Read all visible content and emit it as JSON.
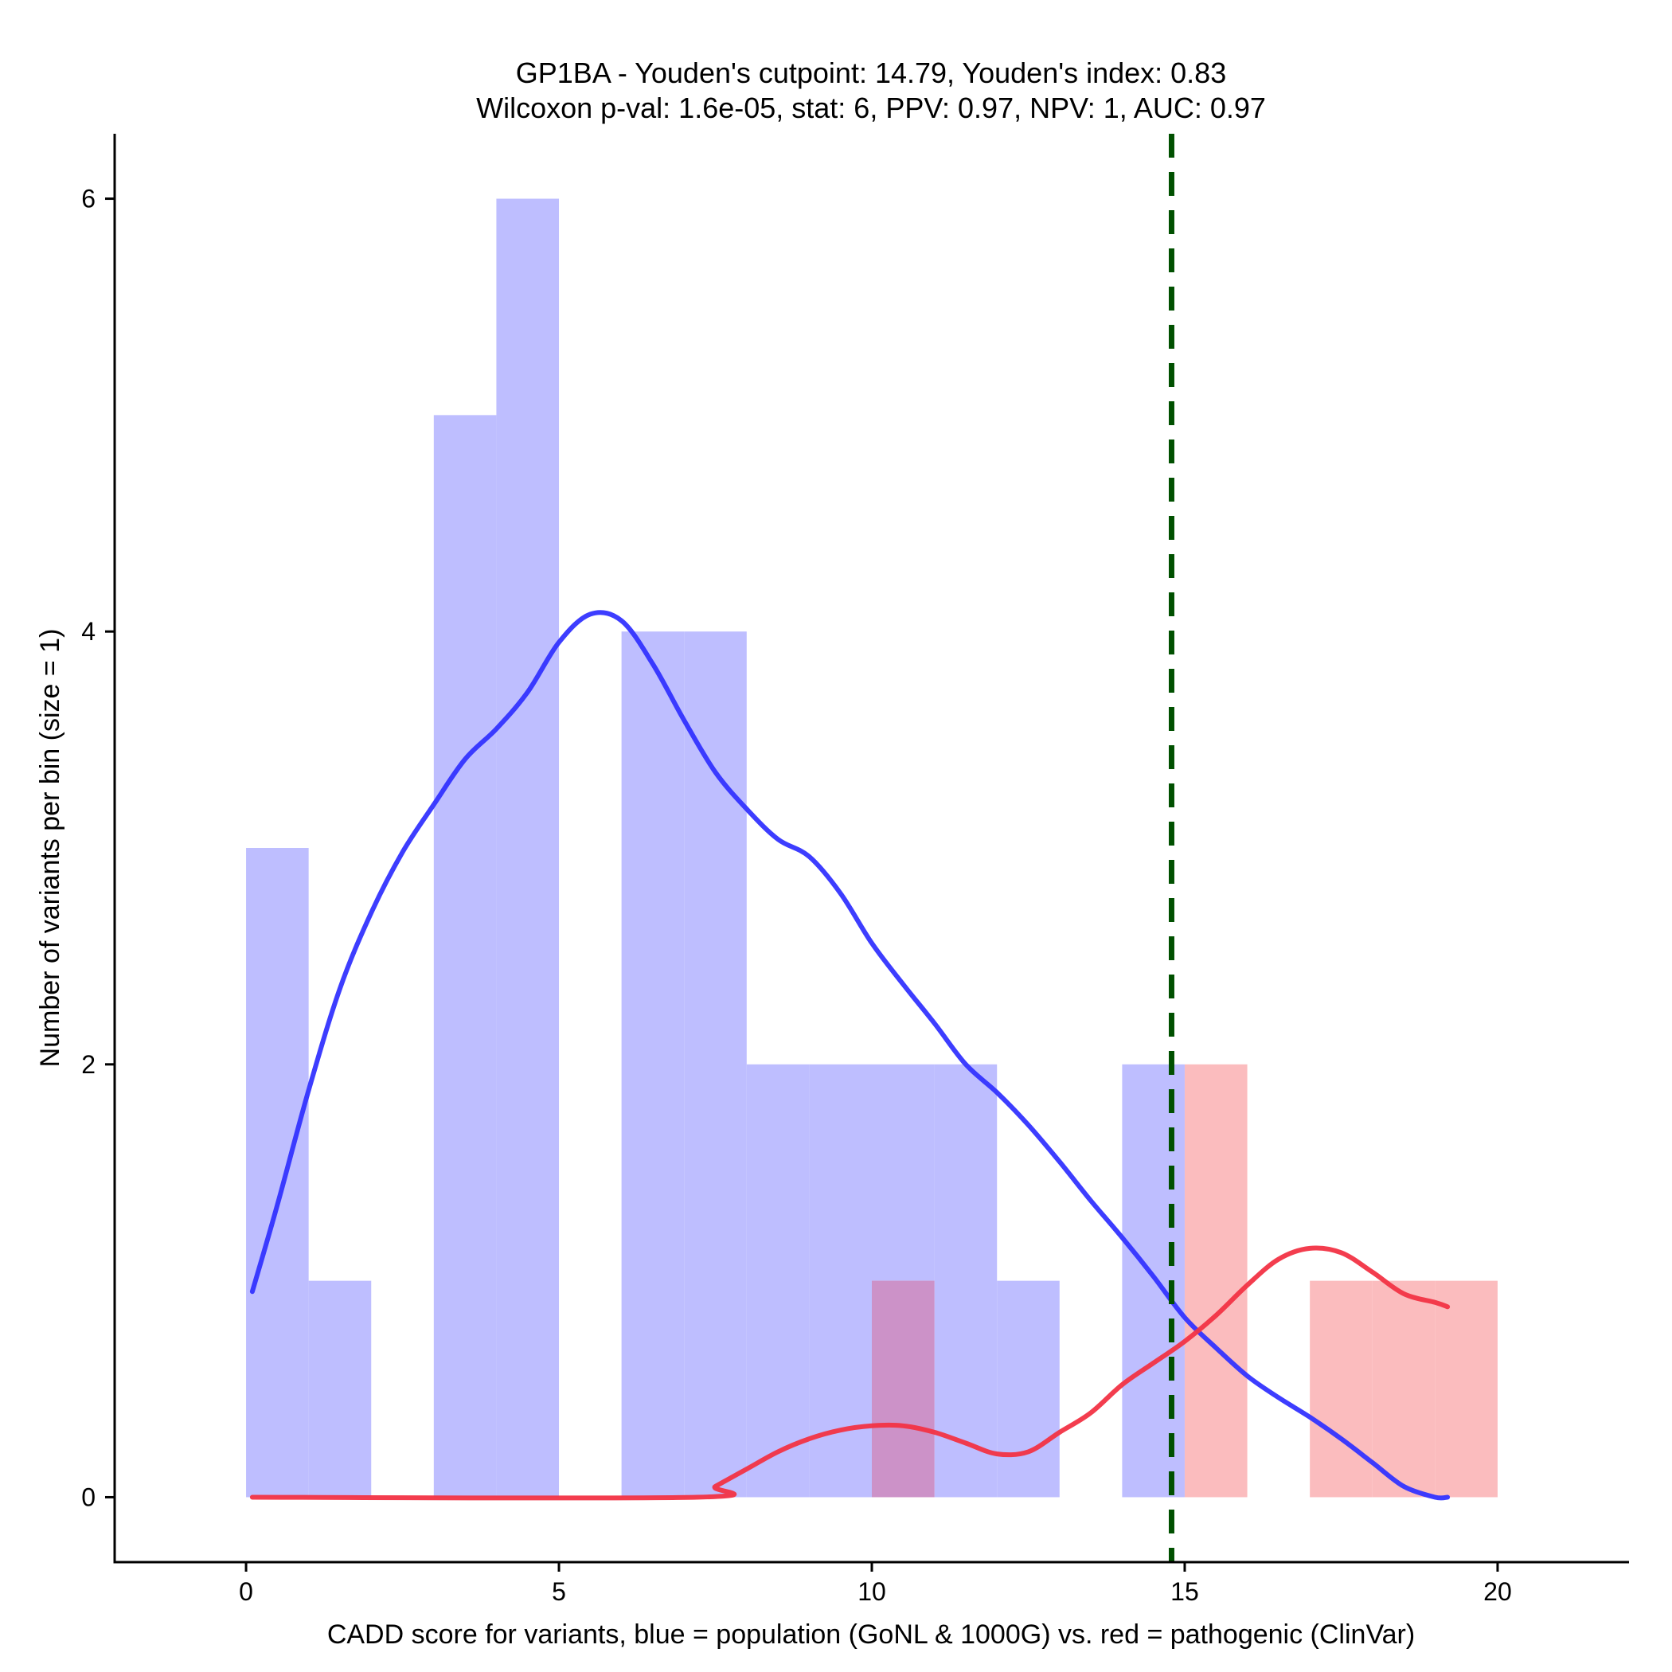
{
  "chart_data": {
    "type": "bar",
    "title": "GP1BA - Youden's cutpoint: 14.79, Youden's index: 0.83",
    "subtitle": "Wilcoxon p-val: 1.6e-05, stat: 6, PPV: 0.97, NPV: 1, AUC: 0.97",
    "xlabel": "CADD score for variants, blue = population (GoNL & 1000G) vs. red = pathogenic (ClinVar)",
    "ylabel": "Number of variants per bin (size = 1)",
    "xlim": [
      -2.1,
      22.1
    ],
    "ylim": [
      -0.3,
      6.3
    ],
    "xticks": [
      0,
      5,
      10,
      15,
      20
    ],
    "yticks": [
      0,
      2,
      4,
      6
    ],
    "cutpoint": 14.79,
    "bin_size": 1,
    "colors": {
      "population_bar": "#BEBEFF",
      "pathogenic_bar": "#FBBCBE",
      "overlap_bar": "#CC92C8",
      "population_curve": "#3333FF",
      "pathogenic_curve": "#F23344",
      "cutpoint_line": "#005000"
    },
    "series": [
      {
        "name": "population",
        "bins": [
          {
            "start": 0,
            "count": 3
          },
          {
            "start": 1,
            "count": 1
          },
          {
            "start": 3,
            "count": 5
          },
          {
            "start": 4,
            "count": 6
          },
          {
            "start": 6,
            "count": 4
          },
          {
            "start": 7,
            "count": 4
          },
          {
            "start": 8,
            "count": 2
          },
          {
            "start": 9,
            "count": 2
          },
          {
            "start": 10,
            "count": 2
          },
          {
            "start": 11,
            "count": 2
          },
          {
            "start": 12,
            "count": 1
          },
          {
            "start": 14,
            "count": 2
          }
        ],
        "curve": [
          [
            0.1,
            0.95
          ],
          [
            0.5,
            1.35
          ],
          [
            1.0,
            1.88
          ],
          [
            1.5,
            2.35
          ],
          [
            2.0,
            2.7
          ],
          [
            2.5,
            2.98
          ],
          [
            3.0,
            3.2
          ],
          [
            3.5,
            3.41
          ],
          [
            4.0,
            3.55
          ],
          [
            4.5,
            3.72
          ],
          [
            5.0,
            3.95
          ],
          [
            5.5,
            4.08
          ],
          [
            6.0,
            4.05
          ],
          [
            6.5,
            3.85
          ],
          [
            7.0,
            3.59
          ],
          [
            7.5,
            3.35
          ],
          [
            8.0,
            3.18
          ],
          [
            8.5,
            3.04
          ],
          [
            9.0,
            2.96
          ],
          [
            9.5,
            2.79
          ],
          [
            10.0,
            2.56
          ],
          [
            10.5,
            2.37
          ],
          [
            11.0,
            2.19
          ],
          [
            11.5,
            2.0
          ],
          [
            12.0,
            1.87
          ],
          [
            12.5,
            1.72
          ],
          [
            13.0,
            1.55
          ],
          [
            13.5,
            1.37
          ],
          [
            14.0,
            1.2
          ],
          [
            14.5,
            1.02
          ],
          [
            15.0,
            0.83
          ],
          [
            15.5,
            0.69
          ],
          [
            16.0,
            0.56
          ],
          [
            16.5,
            0.46
          ],
          [
            17.0,
            0.37
          ],
          [
            17.5,
            0.27
          ],
          [
            18.0,
            0.16
          ],
          [
            18.5,
            0.05
          ],
          [
            19.0,
            0.0
          ],
          [
            19.2,
            0.0
          ]
        ]
      },
      {
        "name": "pathogenic",
        "bins": [
          {
            "start": 10,
            "count": 1
          },
          {
            "start": 15,
            "count": 2
          },
          {
            "start": 17,
            "count": 1
          },
          {
            "start": 18,
            "count": 1
          },
          {
            "start": 19,
            "count": 1
          }
        ],
        "curve": [
          [
            0.1,
            0.0
          ],
          [
            7.2,
            0.0
          ],
          [
            7.5,
            0.05
          ],
          [
            8.0,
            0.13
          ],
          [
            8.5,
            0.21
          ],
          [
            9.0,
            0.27
          ],
          [
            9.5,
            0.31
          ],
          [
            10.0,
            0.33
          ],
          [
            10.5,
            0.33
          ],
          [
            11.0,
            0.3
          ],
          [
            11.5,
            0.25
          ],
          [
            12.0,
            0.2
          ],
          [
            12.5,
            0.21
          ],
          [
            13.0,
            0.3
          ],
          [
            13.5,
            0.39
          ],
          [
            14.0,
            0.52
          ],
          [
            14.5,
            0.62
          ],
          [
            15.0,
            0.72
          ],
          [
            15.5,
            0.84
          ],
          [
            16.0,
            0.98
          ],
          [
            16.5,
            1.1
          ],
          [
            17.0,
            1.15
          ],
          [
            17.5,
            1.13
          ],
          [
            18.0,
            1.04
          ],
          [
            18.5,
            0.94
          ],
          [
            19.0,
            0.9
          ],
          [
            19.2,
            0.88
          ]
        ]
      }
    ],
    "overlap_bins": [
      {
        "start": 10,
        "count": 1
      }
    ]
  }
}
